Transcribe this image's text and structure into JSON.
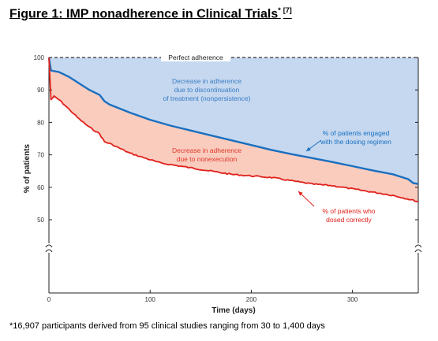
{
  "figure": {
    "title": "Figure 1: IMP nonadherence in Clinical Trials",
    "title_mark": "*",
    "title_ref": "[7]",
    "footnote": "*16,907 participants derived from 95 clinical studies ranging from 30 to 1,400 days"
  },
  "chart_data": {
    "type": "area",
    "title": "",
    "xlabel": "Time (days)",
    "ylabel": "% of patients",
    "xlim": [
      0,
      365
    ],
    "ylim_upper": [
      45,
      100
    ],
    "ylim_lower_break": [
      0,
      45
    ],
    "x_ticks": [
      0,
      100,
      200,
      300
    ],
    "y_ticks": [
      50,
      60,
      70,
      80,
      90,
      100
    ],
    "grid": false,
    "axis_breaks": true,
    "reference_line": {
      "y": 100,
      "label": "Perfect adherence"
    },
    "colors": {
      "nonpersistence_fill": "#c5d8f0",
      "nonexecution_fill": "#f9ccbe",
      "engaged_line": "#1a6fbf",
      "dosed_line": "#e0201b",
      "reference_line": "#333333"
    },
    "series": [
      {
        "name": "% of patients engaged with the dosing regimen",
        "x": [
          0,
          2,
          10,
          20,
          30,
          40,
          50,
          55,
          60,
          80,
          100,
          120,
          140,
          160,
          180,
          200,
          220,
          240,
          260,
          280,
          300,
          320,
          340,
          355,
          360,
          365
        ],
        "y": [
          100,
          96,
          95.5,
          94,
          92,
          90,
          88.5,
          86.5,
          85.5,
          83,
          80.8,
          79,
          77.5,
          76,
          74.5,
          73,
          71.5,
          70.2,
          69,
          67.8,
          66.5,
          65.2,
          64,
          62.5,
          61.3,
          61
        ]
      },
      {
        "name": "% of patients who dosed correctly",
        "x": [
          0,
          2,
          5,
          10,
          20,
          30,
          40,
          50,
          55,
          60,
          80,
          100,
          110,
          120,
          140,
          160,
          180,
          200,
          220,
          240,
          260,
          280,
          300,
          320,
          340,
          360,
          365
        ],
        "y": [
          100,
          87,
          88,
          87,
          84,
          81,
          78.5,
          76.5,
          74,
          73.5,
          70.5,
          68.5,
          67.5,
          67,
          66,
          65,
          64,
          63.5,
          63,
          62,
          61,
          60.5,
          59.5,
          58.5,
          57.5,
          56,
          55.5
        ]
      }
    ],
    "annotations": {
      "nonpersistence": [
        "Decrease in adherence",
        "due to discontinuation",
        "of treatment (nonpersistence)"
      ],
      "nonexecution": [
        "Decrease in adherence",
        "due to nonexecution"
      ],
      "engaged_callout": [
        "% of patients engaged",
        "with  the dosing regimen"
      ],
      "dosed_callout": [
        "% of patients who",
        "dosed correctly"
      ]
    }
  }
}
